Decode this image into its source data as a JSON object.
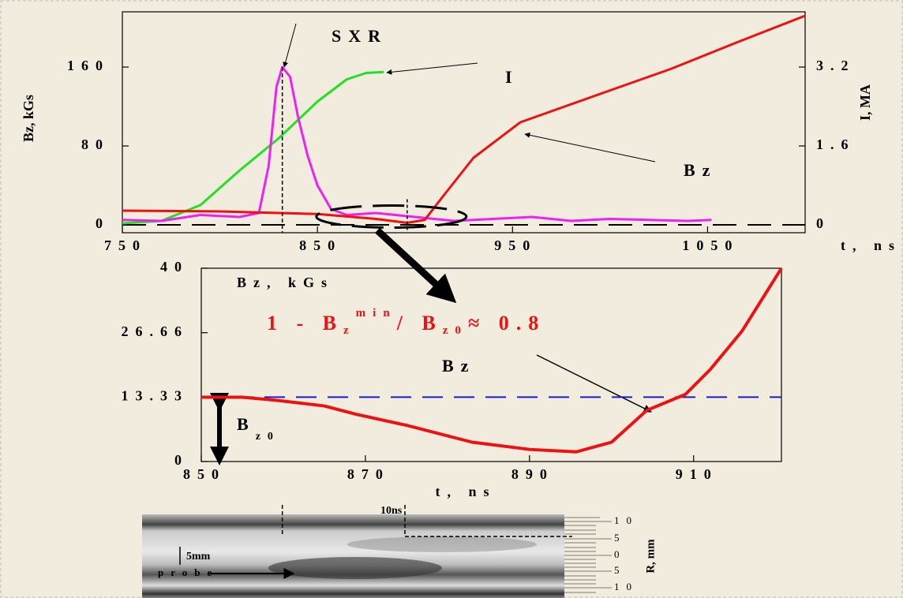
{
  "chart_data": [
    {
      "type": "line",
      "xlim": [
        750,
        1100
      ],
      "xticks": [
        750,
        850,
        950,
        1050
      ],
      "xlabel": "t, ns",
      "ylim": [
        -8,
        216
      ],
      "yticks": [
        0,
        80,
        160
      ],
      "ylabel": "Bz,  kGs",
      "y2lim": [
        -0.16,
        4.32
      ],
      "y2ticks": [
        0,
        1.6,
        3.2
      ],
      "y2label": "I, MA",
      "zero_line": true,
      "series": [
        {
          "name": "I",
          "color": "#22e022",
          "axis": "y2",
          "x": [
            750,
            770,
            790,
            810,
            830,
            850,
            865,
            875,
            884
          ],
          "values": [
            0.03,
            0.08,
            0.4,
            1.1,
            1.75,
            2.5,
            2.95,
            3.08,
            3.1
          ]
        },
        {
          "name": "SXR",
          "color": "#ee22ee",
          "x": [
            750,
            770,
            790,
            810,
            820,
            825,
            829,
            832,
            836,
            840,
            845,
            850,
            857,
            865,
            880,
            900,
            920,
            940,
            960,
            980,
            1000,
            1020,
            1040,
            1052
          ],
          "values": [
            5,
            4,
            10,
            8,
            12,
            60,
            140,
            160,
            150,
            110,
            70,
            40,
            16,
            10,
            12,
            8,
            4,
            6,
            8,
            4,
            6,
            5,
            4,
            5
          ]
        },
        {
          "name": "Bz",
          "color": "#ee1111",
          "x": [
            750,
            800,
            850,
            880,
            896,
            905,
            914,
            930,
            954,
            991,
            1031,
            1065,
            1100
          ],
          "values": [
            14.4,
            13.6,
            11,
            6,
            2,
            5,
            28,
            68,
            104,
            130,
            158,
            185,
            212
          ]
        }
      ]
    },
    {
      "type": "line",
      "xlim": [
        850,
        920.7
      ],
      "xticks": [
        850,
        870,
        890,
        910
      ],
      "xlabel": "t, ns",
      "ylim": [
        0,
        40
      ],
      "yticks": [
        0,
        13.33,
        26.66,
        40
      ],
      "ylabel": "Bz, kGs",
      "reference_line": 13.33,
      "reference_color": "#1a1acc",
      "reference_label_parts": [
        "B",
        "z0"
      ],
      "formula_parts": [
        "1 - B",
        "z",
        "min",
        "/ B",
        "z0",
        "≈ 0.8"
      ],
      "series": [
        {
          "name": "Bz",
          "color": "#ee1111",
          "x": [
            850,
            855,
            859,
            865,
            868.8,
            875,
            883,
            890,
            895.7,
            900,
            904.3,
            909,
            912,
            915.9,
            920.7
          ],
          "values": [
            13.3,
            13.3,
            12.7,
            11.5,
            9.8,
            7.5,
            4,
            2.5,
            2,
            4,
            10.6,
            13.9,
            19,
            27,
            40
          ]
        }
      ]
    }
  ],
  "streak_image": {
    "time_label": "10ns",
    "scale_label": "5mm",
    "probe_label": "probe",
    "axis_label": "R, mm",
    "axis_ticks": [
      "10",
      "5",
      "0",
      "5",
      "10"
    ]
  }
}
